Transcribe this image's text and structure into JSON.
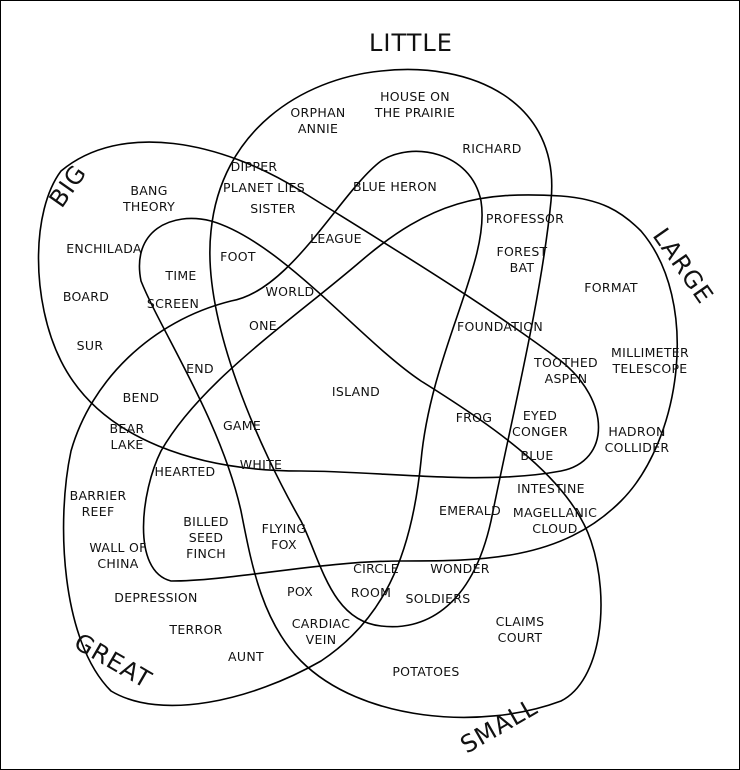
{
  "sets": [
    {
      "label": "BIG"
    },
    {
      "label": "LITTLE"
    },
    {
      "label": "LARGE"
    },
    {
      "label": "SMALL"
    },
    {
      "label": "GREAT"
    }
  ],
  "words": [
    "ORPHAN\nANNIE",
    "HOUSE ON\nTHE PRAIRIE",
    "RICHARD",
    "DIPPER",
    "PLANET LIES",
    "SISTER",
    "BLUE HERON",
    "BANG\nTHEORY",
    "ENCHILADA",
    "BOARD",
    "SUR",
    "TIME",
    "SCREEN",
    "FOOT",
    "LEAGUE",
    "WORLD",
    "ONE",
    "PROFESSOR",
    "FOREST\nBAT",
    "FORMAT",
    "FOUNDATION",
    "TOOTHED\nASPEN",
    "MILLIMETER\nTELESCOPE",
    "END",
    "BEND",
    "BEAR\nLAKE",
    "ISLAND",
    "GAME",
    "WHITE",
    "HEARTED",
    "FROG",
    "EYED\nCONGER",
    "BLUE",
    "HADRON\nCOLLIDER",
    "INTESTINE",
    "MAGELLANIC\nCLOUD",
    "EMERALD",
    "BARRIER\nREEF",
    "BILLED\nSEED\nFINCH",
    "FLYING\nFOX",
    "WALL OF\nCHINA",
    "DEPRESSION",
    "CIRCLE",
    "ROOM",
    "WONDER",
    "SOLDIERS",
    "POX",
    "CARDIAC\nVEIN",
    "TERROR",
    "AUNT",
    "CLAIMS\nCOURT",
    "POTATOES"
  ]
}
